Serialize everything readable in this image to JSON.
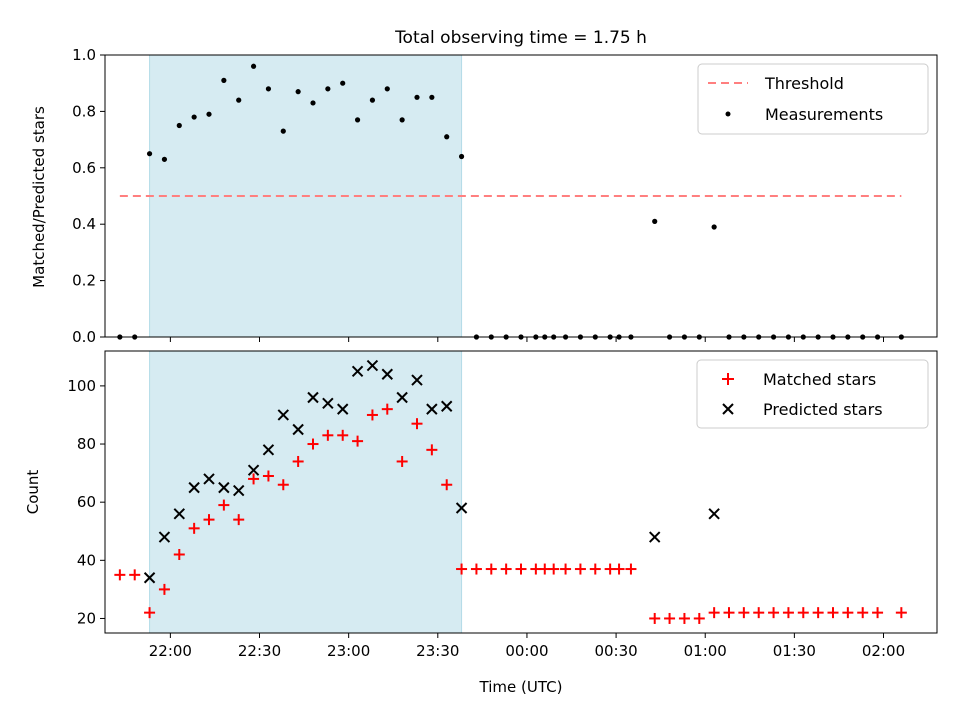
{
  "chart_data": [
    {
      "type": "scatter",
      "title": "Total observing time = 1.75 h",
      "xlabel": "",
      "ylabel": "Matched/Predicted stars",
      "xlim": [
        "21:38",
        "02:18"
      ],
      "ylim": [
        0,
        1.0
      ],
      "yticks": [
        "0.0",
        "0.2",
        "0.4",
        "0.6",
        "0.8",
        "1.0"
      ],
      "shaded_interval": [
        "21:53",
        "23:38"
      ],
      "legend_position": "top-right",
      "threshold": {
        "name": "Threshold",
        "value": 0.5,
        "x_start": "21:43",
        "x_end": "02:06",
        "color": "#ff7f7f"
      },
      "series": [
        {
          "name": "Measurements",
          "color": "#000000",
          "x": [
            "21:43",
            "21:48",
            "21:53",
            "21:58",
            "22:03",
            "22:08",
            "22:13",
            "22:18",
            "22:23",
            "22:28",
            "22:33",
            "22:38",
            "22:43",
            "22:48",
            "22:53",
            "22:58",
            "23:03",
            "23:08",
            "23:13",
            "23:18",
            "23:23",
            "23:28",
            "23:33",
            "23:38",
            "23:43",
            "23:48",
            "23:53",
            "23:58",
            "00:03",
            "00:06",
            "00:09",
            "00:13",
            "00:18",
            "00:23",
            "00:28",
            "00:31",
            "00:35",
            "00:43",
            "00:48",
            "00:53",
            "00:58",
            "01:03",
            "01:08",
            "01:13",
            "01:18",
            "01:23",
            "01:28",
            "01:33",
            "01:38",
            "01:43",
            "01:48",
            "01:53",
            "01:58",
            "02:06"
          ],
          "y": [
            0,
            0,
            0.65,
            0.63,
            0.75,
            0.78,
            0.79,
            0.91,
            0.84,
            0.96,
            0.88,
            0.73,
            0.87,
            0.83,
            0.88,
            0.9,
            0.77,
            0.84,
            0.88,
            0.77,
            0.85,
            0.85,
            0.71,
            0.64,
            0,
            0,
            0,
            0,
            0,
            0,
            0,
            0,
            0,
            0,
            0,
            0,
            0,
            0.41,
            0,
            0,
            0,
            0.39,
            0,
            0,
            0,
            0,
            0,
            0,
            0,
            0,
            0,
            0,
            0,
            0
          ]
        }
      ]
    },
    {
      "type": "scatter",
      "title": "",
      "xlabel": "Time (UTC)",
      "ylabel": "Count",
      "xlim": [
        "21:38",
        "02:18"
      ],
      "ylim": [
        15,
        112
      ],
      "xticks": [
        "22:00",
        "22:30",
        "23:00",
        "23:30",
        "00:00",
        "00:30",
        "01:00",
        "01:30",
        "02:00"
      ],
      "yticks": [
        "20",
        "40",
        "60",
        "80",
        "100"
      ],
      "shaded_interval": [
        "21:53",
        "23:38"
      ],
      "legend_position": "top-right",
      "series": [
        {
          "name": "Matched stars",
          "marker": "plus",
          "color": "#ff0000",
          "x": [
            "21:43",
            "21:48",
            "21:53",
            "21:58",
            "22:03",
            "22:08",
            "22:13",
            "22:18",
            "22:23",
            "22:28",
            "22:33",
            "22:38",
            "22:43",
            "22:48",
            "22:53",
            "22:58",
            "23:03",
            "23:08",
            "23:13",
            "23:18",
            "23:23",
            "23:28",
            "23:33",
            "23:38",
            "23:43",
            "23:48",
            "23:53",
            "23:58",
            "00:03",
            "00:06",
            "00:09",
            "00:13",
            "00:18",
            "00:23",
            "00:28",
            "00:31",
            "00:35",
            "00:43",
            "00:48",
            "00:53",
            "00:58",
            "01:03",
            "01:08",
            "01:13",
            "01:18",
            "01:23",
            "01:28",
            "01:33",
            "01:38",
            "01:43",
            "01:48",
            "01:53",
            "01:58",
            "02:06"
          ],
          "y": [
            35,
            35,
            22,
            30,
            42,
            51,
            54,
            59,
            54,
            68,
            69,
            66,
            74,
            80,
            83,
            83,
            81,
            90,
            92,
            74,
            87,
            78,
            66,
            37,
            37,
            37,
            37,
            37,
            37,
            37,
            37,
            37,
            37,
            37,
            37,
            37,
            37,
            20,
            20,
            20,
            20,
            22,
            22,
            22,
            22,
            22,
            22,
            22,
            22,
            22,
            22,
            22,
            22,
            22
          ]
        },
        {
          "name": "Predicted stars",
          "marker": "x",
          "color": "#000000",
          "x": [
            "21:53",
            "21:58",
            "22:03",
            "22:08",
            "22:13",
            "22:18",
            "22:23",
            "22:28",
            "22:33",
            "22:38",
            "22:43",
            "22:48",
            "22:53",
            "22:58",
            "23:03",
            "23:08",
            "23:13",
            "23:18",
            "23:23",
            "23:28",
            "23:33",
            "23:38",
            "00:43",
            "01:03"
          ],
          "y": [
            34,
            48,
            56,
            65,
            68,
            65,
            64,
            71,
            78,
            90,
            85,
            96,
            94,
            92,
            105,
            107,
            104,
            96,
            102,
            92,
            93,
            58,
            48,
            56
          ]
        }
      ]
    }
  ]
}
